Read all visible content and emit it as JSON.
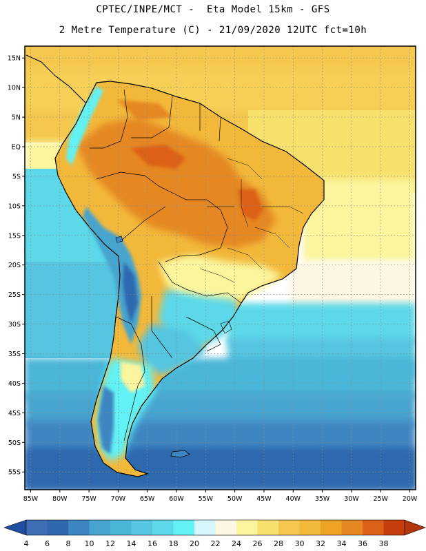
{
  "title": {
    "line1": "CPTEC/INPE/MCT -  Eta Model 15km - GFS",
    "line2": "2 Metre Temperature (C) - 21/09/2020 12UTC fct=10h"
  },
  "map": {
    "variable": "2 Metre Temperature",
    "units": "C",
    "lon_range": [
      -86,
      -19
    ],
    "lat_range": [
      -58,
      17
    ],
    "lon_ticks": [
      "85W",
      "80W",
      "75W",
      "70W",
      "65W",
      "60W",
      "55W",
      "50W",
      "45W",
      "40W",
      "35W",
      "30W",
      "25W",
      "20W"
    ],
    "lon_values": [
      -85,
      -80,
      -75,
      -70,
      -65,
      -60,
      -55,
      -50,
      -45,
      -40,
      -35,
      -30,
      -25,
      -20
    ],
    "lat_ticks": [
      "15N",
      "10N",
      "5N",
      "EQ",
      "5S",
      "10S",
      "15S",
      "20S",
      "25S",
      "30S",
      "35S",
      "40S",
      "45S",
      "50S",
      "55S"
    ],
    "lat_values": [
      15,
      10,
      5,
      0,
      -5,
      -10,
      -15,
      -20,
      -25,
      -30,
      -35,
      -40,
      -45,
      -50,
      -55
    ]
  },
  "colorbar": {
    "labels": [
      "4",
      "6",
      "8",
      "10",
      "12",
      "14",
      "16",
      "18",
      "20",
      "22",
      "24",
      "26",
      "28",
      "30",
      "32",
      "34",
      "36",
      "38"
    ],
    "colors": [
      "#3e6fb4",
      "#2f67ad",
      "#3d86c2",
      "#47a4cf",
      "#4ab6d8",
      "#55c5e0",
      "#5cd8e8",
      "#62f1f4",
      "#d5f6fb",
      "#fdf6e2",
      "#fbf59d",
      "#f8e06d",
      "#f4c84e",
      "#f2b83a",
      "#eda222",
      "#e58723",
      "#dc6016",
      "#c43d0b"
    ],
    "under_color": "#1f4fa0",
    "over_color": "#b1360c"
  },
  "legend": {
    "type": "color-scale"
  }
}
